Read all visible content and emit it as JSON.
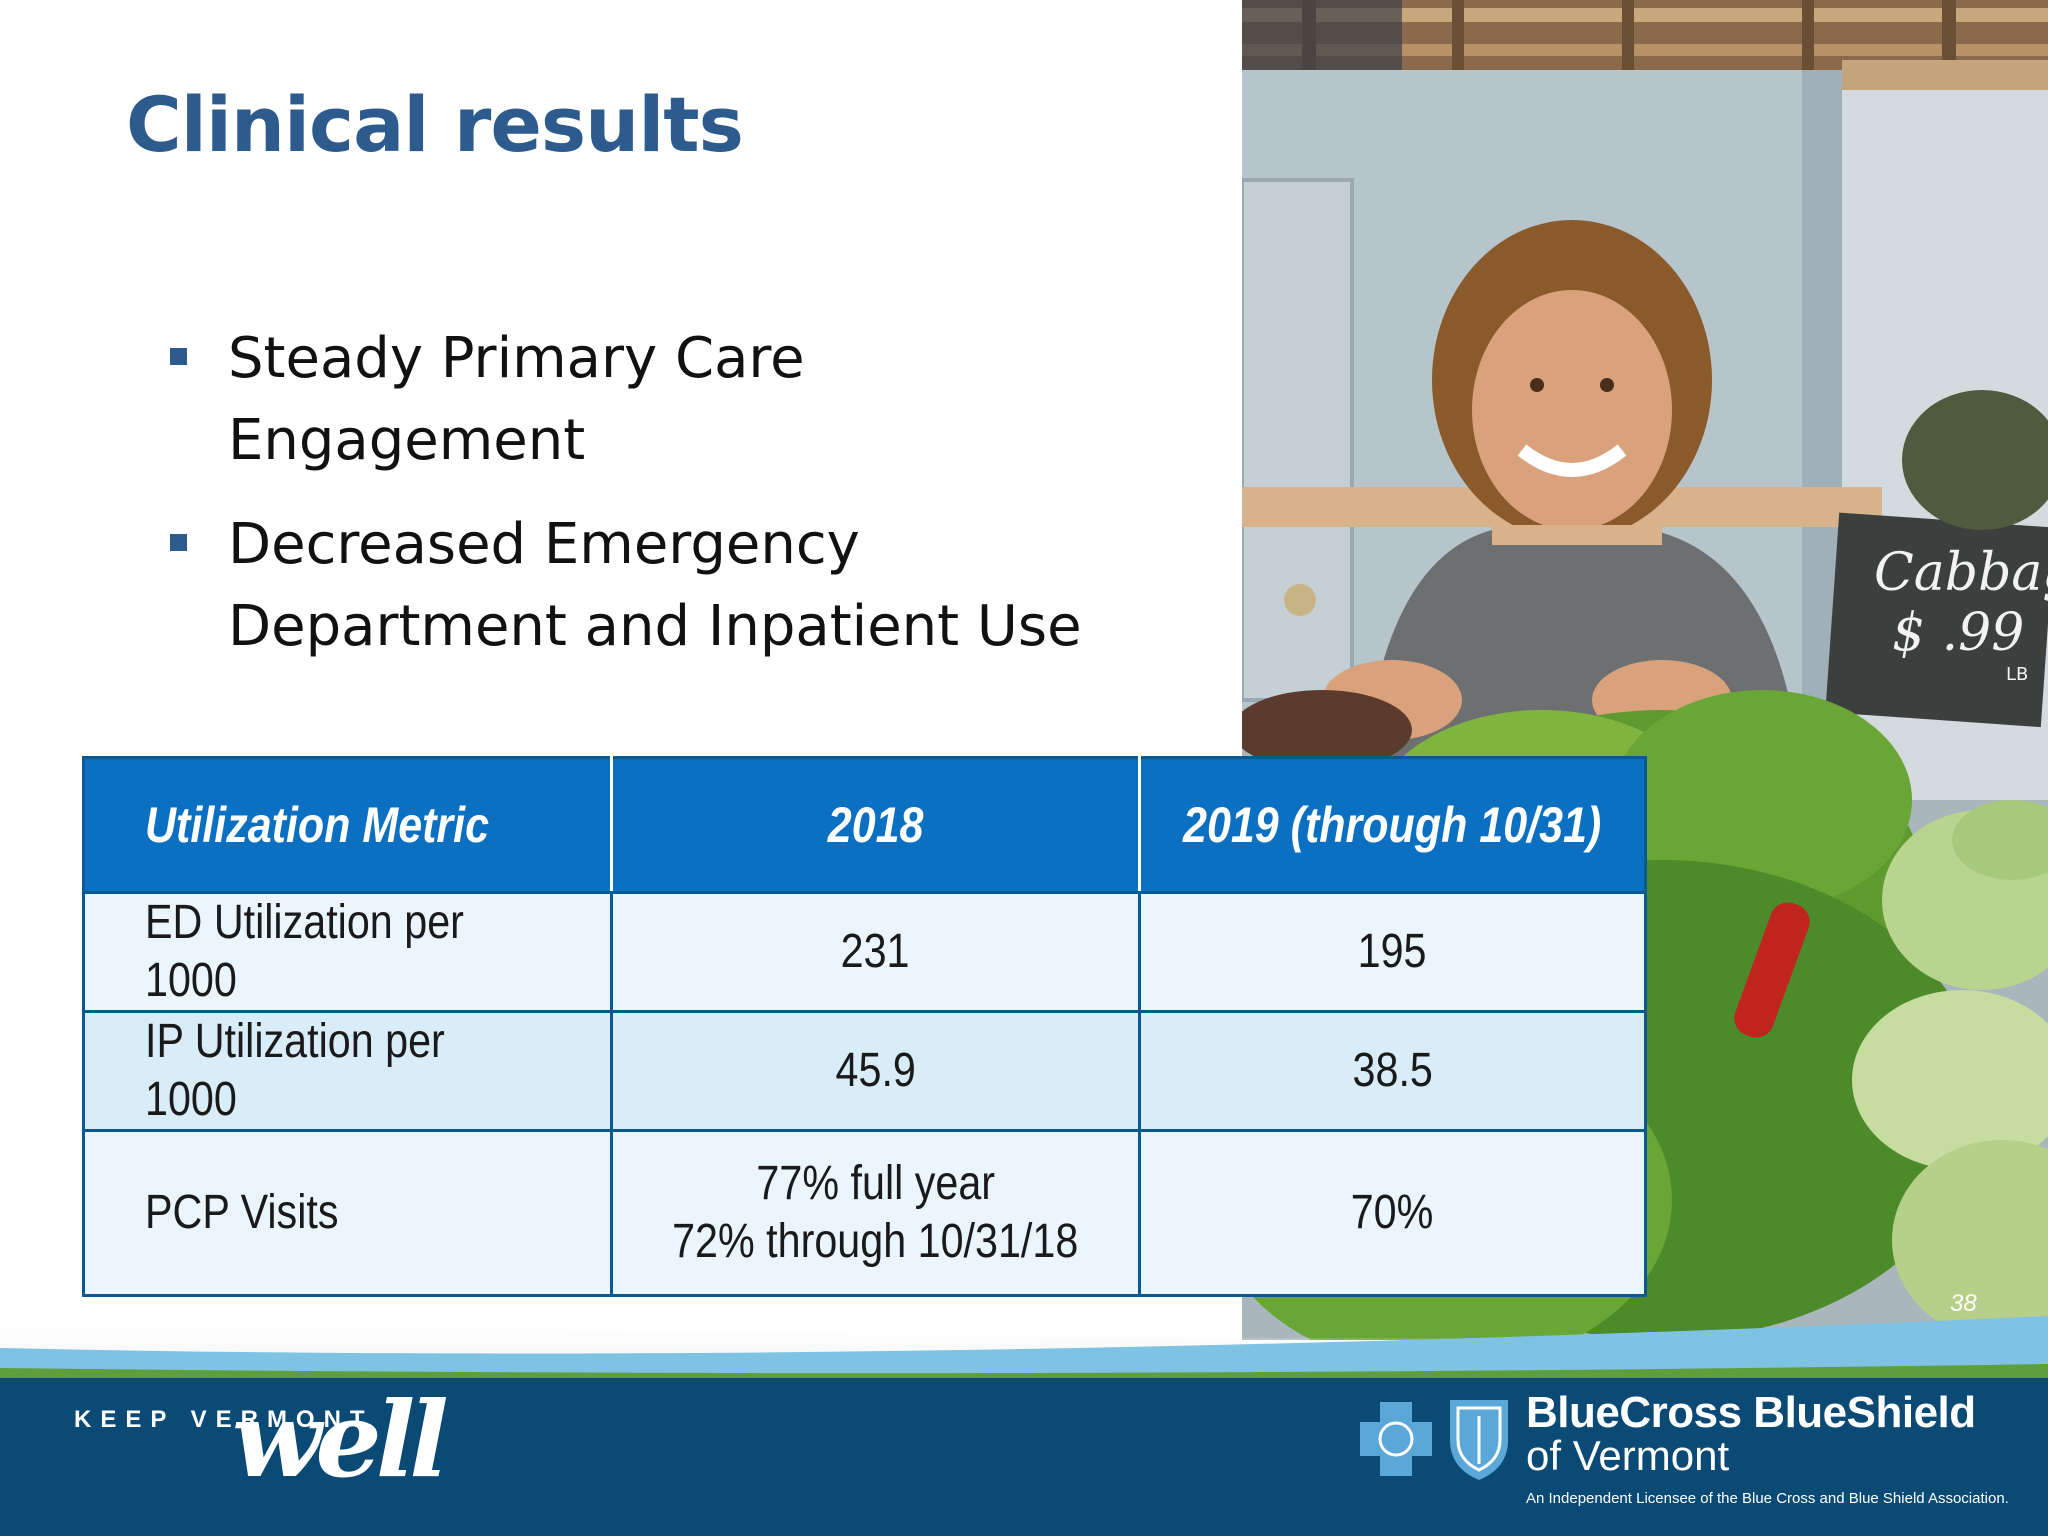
{
  "slide": {
    "title": "Clinical results",
    "page_number": "38"
  },
  "bullets": [
    {
      "text": "Steady Primary Care Engagement"
    },
    {
      "text": "Decreased Emergency Department and Inpatient Use"
    }
  ],
  "table": {
    "headers": [
      "Utilization Metric",
      "2018",
      "2019 (through 10/31)"
    ],
    "rows": [
      {
        "metric": "ED Utilization per 1000",
        "y2018": "231",
        "y2019": "195"
      },
      {
        "metric": "IP Utilization per 1000",
        "y2018": "45.9",
        "y2019": "38.5"
      },
      {
        "metric": "PCP Visits",
        "y2018_line1": "77% full year",
        "y2018_line2": "72% through 10/31/18",
        "y2019": "70%"
      }
    ],
    "colors": {
      "header_bg": "#0c70c2",
      "row_light": "#eaf5fd",
      "row_alt": "#d9edf9",
      "border": "#0b5a8f"
    }
  },
  "photo": {
    "sign_line1": "Cabbage",
    "sign_line2": "$ .99",
    "sign_unit": "LB"
  },
  "footer": {
    "campaign_small": "KEEP VERMONT",
    "campaign_script": "well",
    "brand_name": "BlueCross BlueShield",
    "brand_sub": "of Vermont",
    "license": "An Independent Licensee of the Blue Cross and Blue Shield Association.",
    "colors": {
      "bar": "#0a4a75",
      "accent": "#7ec3e3",
      "green": "#5f9e3c"
    }
  },
  "colors": {
    "title": "#2e5b8e",
    "text": "#111111"
  }
}
